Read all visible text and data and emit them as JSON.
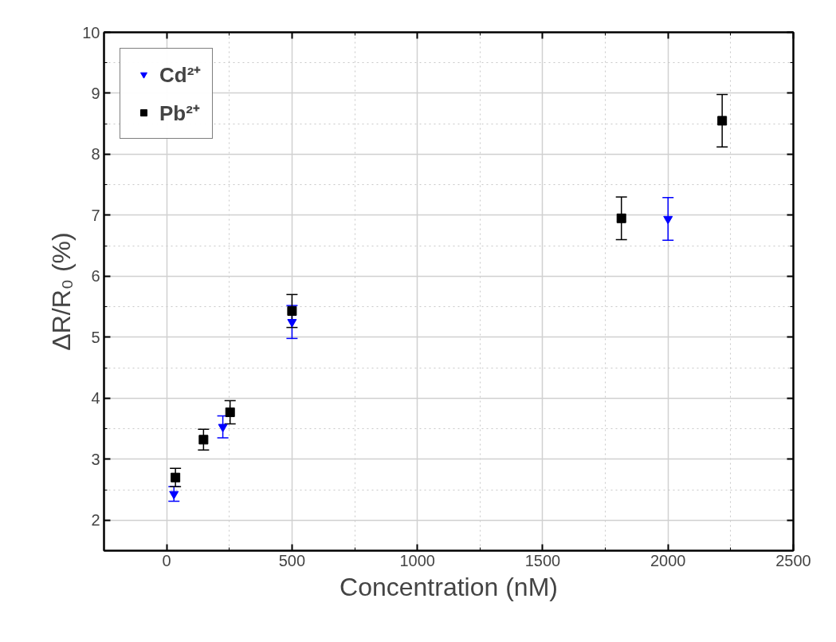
{
  "chart_data": {
    "type": "scatter",
    "xlabel": "Concentration (nM)",
    "ylabel": "ΔR/R₀ (%)",
    "xlim": [
      -250,
      2500
    ],
    "ylim": [
      1.5,
      10
    ],
    "xticks": [
      0,
      {
        "value": 250,
        "label": null
      },
      500,
      {
        "value": 750,
        "label": null
      },
      1000,
      {
        "value": 1250,
        "label": null
      },
      1500,
      {
        "value": 1750,
        "label": null
      },
      2000,
      {
        "value": 2250,
        "label": null
      },
      2500
    ],
    "yticks": [
      2,
      {
        "value": 2.5,
        "label": null
      },
      3,
      {
        "value": 3.5,
        "label": null
      },
      4,
      {
        "value": 4.5,
        "label": null
      },
      5,
      {
        "value": 5.5,
        "label": null
      },
      6,
      {
        "value": 6.5,
        "label": null
      },
      7,
      {
        "value": 7.5,
        "label": null
      },
      8,
      {
        "value": 8.5,
        "label": null
      },
      9,
      {
        "value": 9.5,
        "label": null
      },
      10
    ],
    "grid": true,
    "legend": "top left",
    "series": [
      {
        "name": "Cd²⁺",
        "color": "#0000ff",
        "marker": "triangle",
        "x": [
          29,
          224,
          500,
          2000
        ],
        "values": [
          2.43,
          3.53,
          5.25,
          6.94
        ],
        "errors": [
          0.12,
          0.18,
          0.27,
          0.35
        ]
      },
      {
        "name": "Pb²⁺",
        "color": "#000000",
        "marker": "square",
        "x": [
          35,
          147,
          253,
          500,
          1814,
          2216
        ],
        "values": [
          2.7,
          3.32,
          3.77,
          5.43,
          6.95,
          8.55
        ],
        "errors": [
          0.15,
          0.17,
          0.19,
          0.27,
          0.35,
          0.43
        ]
      }
    ]
  }
}
